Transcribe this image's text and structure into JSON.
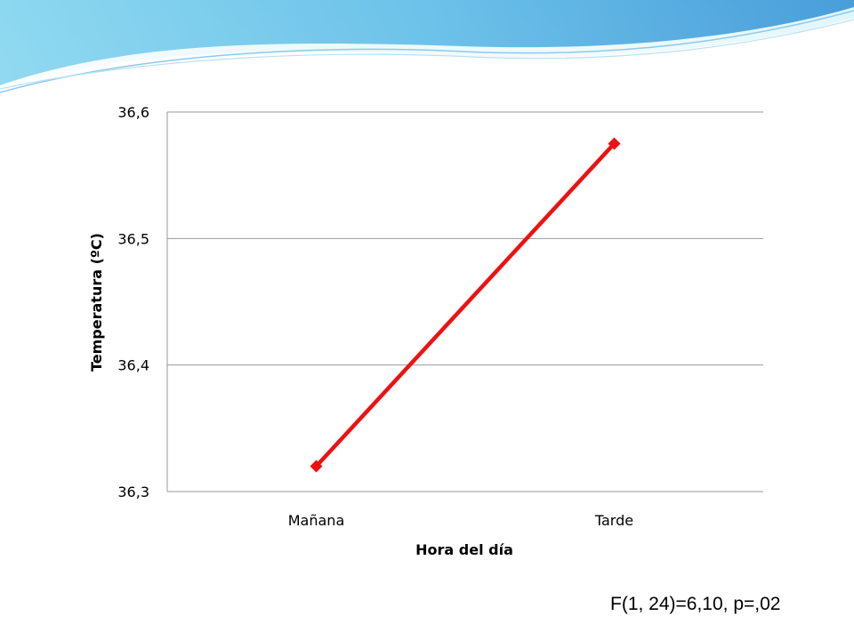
{
  "theme": {
    "banner_dark": "#3a9fd8",
    "banner_light": "#9fdcf0",
    "series_color": "#ee1111",
    "grid_color": "#9a9a9a"
  },
  "chart_data": {
    "type": "line",
    "categories": [
      "Mañana",
      "Tarde"
    ],
    "series": [
      {
        "values": [
          36.32,
          36.575
        ]
      }
    ],
    "ylim": [
      36.3,
      36.6
    ],
    "yticks": [
      36.3,
      36.4,
      36.5,
      36.6
    ],
    "ytick_labels": [
      "36,3",
      "36,4",
      "36,5",
      "36,6"
    ],
    "xlabel": "Hora del día",
    "ylabel": "Temperatura (ºC)",
    "grid": true,
    "marker": "diamond"
  },
  "annotation": "F(1, 24)=6,10, p=,02"
}
